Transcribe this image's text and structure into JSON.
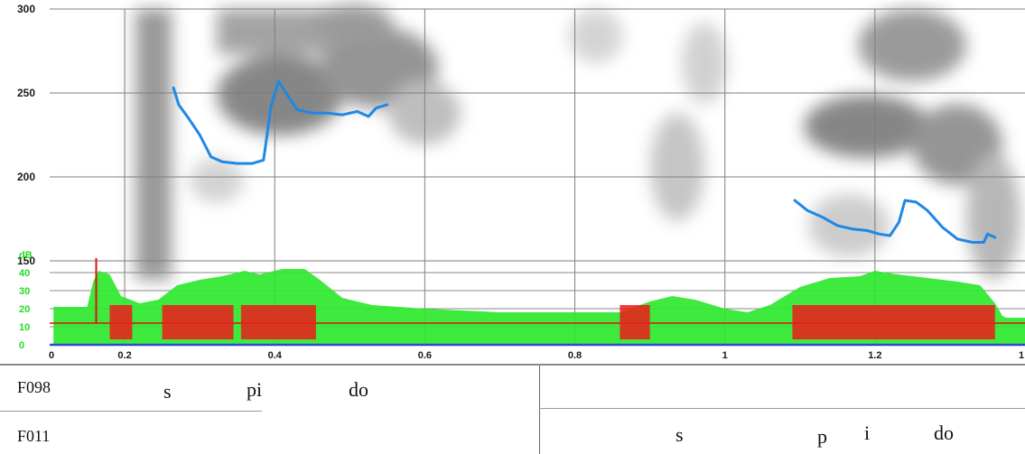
{
  "chart_data": {
    "type": "line",
    "xlim": [
      0.1,
      1.4
    ],
    "x_ticks": [
      "0.2",
      "0.4",
      "0.6",
      "0.8",
      "1",
      "1.2"
    ],
    "x_axis_end_labels": [
      "0",
      "1"
    ],
    "pitch_ylim": [
      100,
      300
    ],
    "pitch_ticks": [
      "150",
      "200",
      "250",
      "300"
    ],
    "db_unit": "dB",
    "db_ylim": [
      0,
      50
    ],
    "db_ticks": [
      "0",
      "10",
      "20",
      "30",
      "40"
    ],
    "grid": true,
    "series": [
      {
        "color": "#1e88e5",
        "points": [
          [
            0.265,
            253
          ],
          [
            0.272,
            243
          ],
          [
            0.285,
            235
          ],
          [
            0.3,
            225
          ],
          [
            0.315,
            212
          ],
          [
            0.33,
            209
          ],
          [
            0.35,
            208
          ],
          [
            0.37,
            208
          ],
          [
            0.385,
            210
          ],
          [
            0.395,
            242
          ],
          [
            0.405,
            257
          ],
          [
            0.415,
            250
          ],
          [
            0.43,
            240
          ],
          [
            0.45,
            238
          ],
          [
            0.47,
            238
          ],
          [
            0.49,
            237
          ],
          [
            0.51,
            239
          ],
          [
            0.525,
            236
          ],
          [
            0.535,
            241
          ],
          [
            0.55,
            243
          ]
        ]
      },
      {
        "color": "#1e88e5",
        "points": [
          [
            1.093,
            186
          ],
          [
            1.11,
            180
          ],
          [
            1.13,
            176
          ],
          [
            1.15,
            171
          ],
          [
            1.17,
            169
          ],
          [
            1.19,
            168
          ],
          [
            1.205,
            166
          ],
          [
            1.22,
            165
          ],
          [
            1.232,
            173
          ],
          [
            1.24,
            186
          ],
          [
            1.255,
            185
          ],
          [
            1.27,
            180
          ],
          [
            1.29,
            170
          ],
          [
            1.31,
            163
          ],
          [
            1.33,
            161
          ],
          [
            1.345,
            161
          ],
          [
            1.35,
            166
          ],
          [
            1.36,
            164
          ]
        ]
      }
    ],
    "intensity_envelope": [
      [
        0.105,
        21
      ],
      [
        0.15,
        21
      ],
      [
        0.158,
        35
      ],
      [
        0.165,
        41
      ],
      [
        0.18,
        39
      ],
      [
        0.195,
        27
      ],
      [
        0.22,
        23
      ],
      [
        0.245,
        25
      ],
      [
        0.27,
        33
      ],
      [
        0.3,
        36
      ],
      [
        0.33,
        38
      ],
      [
        0.36,
        41
      ],
      [
        0.38,
        39
      ],
      [
        0.41,
        42
      ],
      [
        0.44,
        42
      ],
      [
        0.46,
        36
      ],
      [
        0.49,
        26
      ],
      [
        0.53,
        22
      ],
      [
        0.6,
        20
      ],
      [
        0.7,
        18
      ],
      [
        0.8,
        18
      ],
      [
        0.86,
        18
      ],
      [
        0.9,
        24
      ],
      [
        0.93,
        27
      ],
      [
        0.96,
        25
      ],
      [
        1.0,
        20
      ],
      [
        1.03,
        18
      ],
      [
        1.06,
        22
      ],
      [
        1.1,
        32
      ],
      [
        1.14,
        37
      ],
      [
        1.18,
        38
      ],
      [
        1.2,
        41
      ],
      [
        1.23,
        39
      ],
      [
        1.27,
        37
      ],
      [
        1.31,
        35
      ],
      [
        1.34,
        33
      ],
      [
        1.36,
        23
      ],
      [
        1.37,
        16
      ],
      [
        1.375,
        15
      ],
      [
        1.4,
        15
      ]
    ],
    "annotation_rows": [
      {
        "speaker": "F098",
        "syllables": [
          "s",
          "pi",
          "do"
        ]
      },
      {
        "speaker": "F011",
        "syllables": [
          "s",
          "p",
          "i",
          "do"
        ]
      }
    ]
  }
}
